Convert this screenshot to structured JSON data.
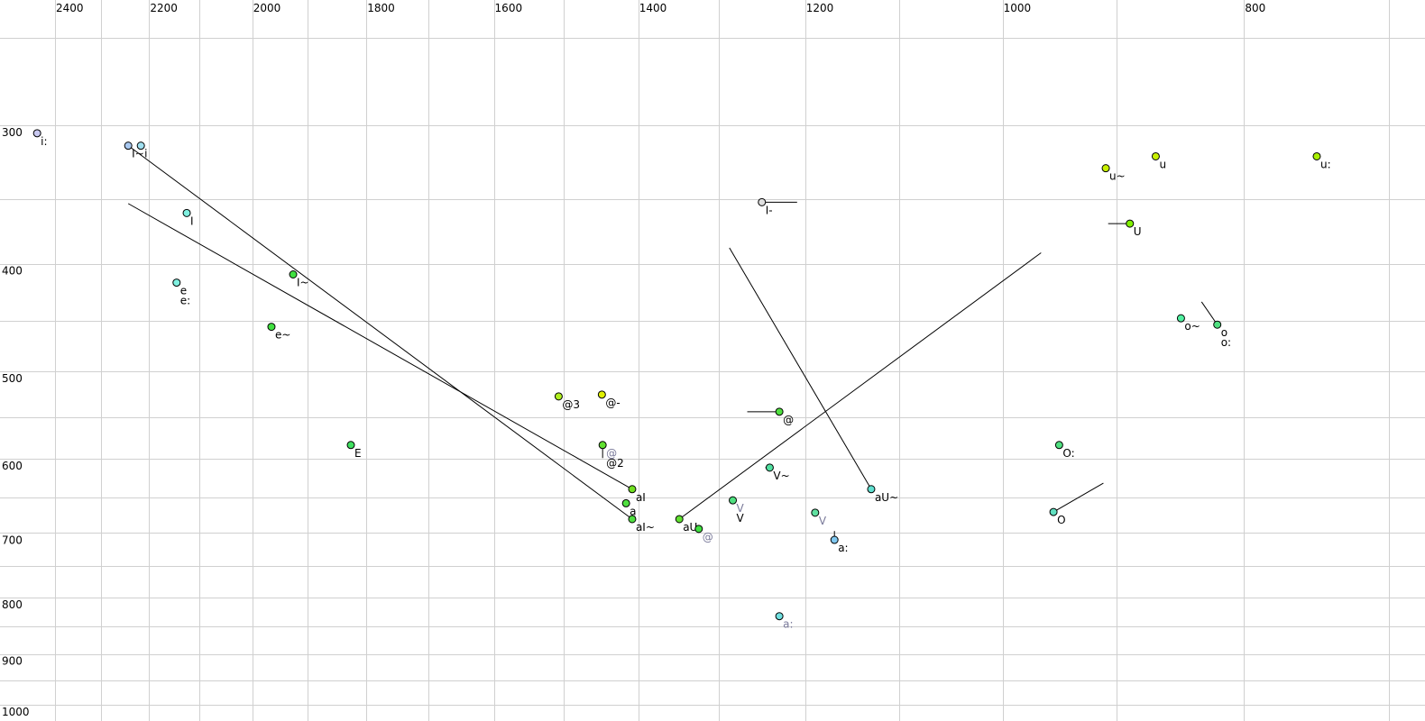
{
  "chart_data": {
    "type": "scatter",
    "title": "",
    "xlabel": "",
    "ylabel": "",
    "x_axis": {
      "scale": "log",
      "reversed": true,
      "range": [
        2450,
        690
      ],
      "position": "top",
      "tick_labels": [
        "2400",
        "2200",
        "2000",
        "1800",
        "1600",
        "1400",
        "1200",
        "1000",
        "800"
      ],
      "ticks": [
        2400,
        2200,
        2000,
        1800,
        1600,
        1400,
        1200,
        1000,
        800
      ],
      "gridlines": [
        2400,
        2300,
        2200,
        2100,
        2000,
        1900,
        1800,
        1700,
        1600,
        1500,
        1400,
        1300,
        1200,
        1100,
        1000,
        900,
        800,
        700
      ]
    },
    "y_axis": {
      "scale": "log",
      "reversed": true,
      "range": [
        225,
        1010
      ],
      "position": "left",
      "tick_labels": [
        "300",
        "400",
        "500",
        "600",
        "700",
        "800",
        "900",
        "1000"
      ],
      "ticks": [
        300,
        400,
        500,
        600,
        700,
        800,
        900,
        1000
      ],
      "gridlines": [
        250,
        300,
        350,
        400,
        450,
        500,
        550,
        600,
        650,
        700,
        750,
        800,
        850,
        900,
        950,
        1000
      ]
    },
    "grid": true,
    "grid_color": "#d0d0d0",
    "label_color_default": "#000000",
    "label_color_alt": "#7a7a9a",
    "points": [
      {
        "label": [
          "i:"
        ],
        "f2": 2440,
        "f1": 305,
        "color": "#c8c8f0"
      },
      {
        "label": [
          "I~"
        ],
        "f2": 2243,
        "f1": 313,
        "color": "#a8c8f0"
      },
      {
        "label": [
          "i"
        ],
        "f2": 2217,
        "f1": 313,
        "color": "#a0e0f0"
      },
      {
        "label": [
          "I"
        ],
        "f2": 2125,
        "f1": 360,
        "color": "#80f0e0"
      },
      {
        "label": [
          "e",
          "e:"
        ],
        "f2": 2145,
        "f1": 416,
        "color": "#80f0e0"
      },
      {
        "label": [
          "I~"
        ],
        "f2": 1926,
        "f1": 409,
        "color": "#40e040"
      },
      {
        "label": [
          "e~"
        ],
        "f2": 1965,
        "f1": 456,
        "color": "#40e040"
      },
      {
        "label": [
          "E"
        ],
        "f2": 1826,
        "f1": 583,
        "color": "#40e060"
      },
      {
        "label": [
          "@3"
        ],
        "f2": 1507,
        "f1": 527,
        "color": "#b0f020"
      },
      {
        "label": [
          "@-"
        ],
        "f2": 1448,
        "f1": 525,
        "color": "#e0f000"
      },
      {
        "label": [
          "@",
          "@2"
        ],
        "label_alt": [
          true,
          false
        ],
        "f2": 1447,
        "f1": 583,
        "color": "#60e030"
      },
      {
        "label": [
          "@"
        ],
        "f2": 1229,
        "f1": 544,
        "color": "#50e040"
      },
      {
        "label": [
          "aI"
        ],
        "f2": 1408,
        "f1": 639,
        "color": "#70e020"
      },
      {
        "label": [
          "a"
        ],
        "f2": 1416,
        "f1": 658,
        "color": "#50e040"
      },
      {
        "label": [
          "aI~"
        ],
        "f2": 1408,
        "f1": 680,
        "color": "#50e040"
      },
      {
        "label": [
          "aU"
        ],
        "f2": 1348,
        "f1": 680,
        "color": "#60e030"
      },
      {
        "label": [
          "@"
        ],
        "label_alt": [
          true
        ],
        "f2": 1324,
        "f1": 694,
        "color": "#40e040"
      },
      {
        "label": [
          "V",
          "V"
        ],
        "label_alt": [
          true,
          false
        ],
        "f2": 1283,
        "f1": 654,
        "color": "#50e080"
      },
      {
        "label": [
          "V~"
        ],
        "f2": 1240,
        "f1": 611,
        "color": "#50e0a0"
      },
      {
        "label": [
          "V"
        ],
        "label_alt": [
          true
        ],
        "f2": 1189,
        "f1": 671,
        "color": "#60e0a0"
      },
      {
        "label": [
          "a:"
        ],
        "f2": 1168,
        "f1": 710,
        "color": "#80c8f0"
      },
      {
        "label": [
          "a:"
        ],
        "label_alt": [
          true
        ],
        "f2": 1229,
        "f1": 832,
        "color": "#70e0e0"
      },
      {
        "label": [
          "aU~"
        ],
        "f2": 1129,
        "f1": 639,
        "color": "#60e0d0"
      },
      {
        "label": [
          "I-"
        ],
        "f2": 1249,
        "f1": 352,
        "color": "#e0e0e0"
      },
      {
        "label": [
          "u~"
        ],
        "f2": 909,
        "f1": 328,
        "color": "#c8f000"
      },
      {
        "label": [
          "u"
        ],
        "f2": 868,
        "f1": 320,
        "color": "#c8f000"
      },
      {
        "label": [
          "u:"
        ],
        "f2": 748,
        "f1": 320,
        "color": "#a8f000"
      },
      {
        "label": [
          "U"
        ],
        "f2": 889,
        "f1": 368,
        "color": "#80f000"
      },
      {
        "label": [
          "o~"
        ],
        "f2": 848,
        "f1": 448,
        "color": "#50f0a0"
      },
      {
        "label": [
          "o",
          "o:"
        ],
        "f2": 820,
        "f1": 454,
        "color": "#50e080"
      },
      {
        "label": [
          "O:"
        ],
        "f2": 949,
        "f1": 583,
        "color": "#50e080"
      },
      {
        "label": [
          "O"
        ],
        "f2": 954,
        "f1": 670,
        "color": "#60e0c0"
      }
    ],
    "trajectories": [
      {
        "from": [
          2243,
          313
        ],
        "to": [
          1408,
          680
        ]
      },
      {
        "from": [
          2243,
          353
        ],
        "to": [
          1408,
          639
        ]
      },
      {
        "from": [
          1348,
          680
        ],
        "to": [
          965,
          391
        ]
      },
      {
        "from": [
          1129,
          639
        ],
        "to": [
          1287,
          387
        ]
      },
      {
        "from": [
          1249,
          352
        ],
        "to": [
          1209,
          352
        ]
      },
      {
        "from": [
          1266,
          544
        ],
        "to": [
          1229,
          544
        ]
      },
      {
        "from": [
          907,
          368
        ],
        "to": [
          889,
          368
        ]
      },
      {
        "from": [
          832,
          433
        ],
        "to": [
          820,
          454
        ]
      },
      {
        "from": [
          954,
          670
        ],
        "to": [
          911,
          631
        ]
      },
      {
        "from": [
          1245,
          611
        ],
        "to": [
          1240,
          611
        ]
      },
      {
        "from": [
          1447,
          583
        ],
        "to": [
          1447,
          599
        ]
      },
      {
        "from": [
          1168,
          697
        ],
        "to": [
          1168,
          710
        ]
      }
    ]
  }
}
